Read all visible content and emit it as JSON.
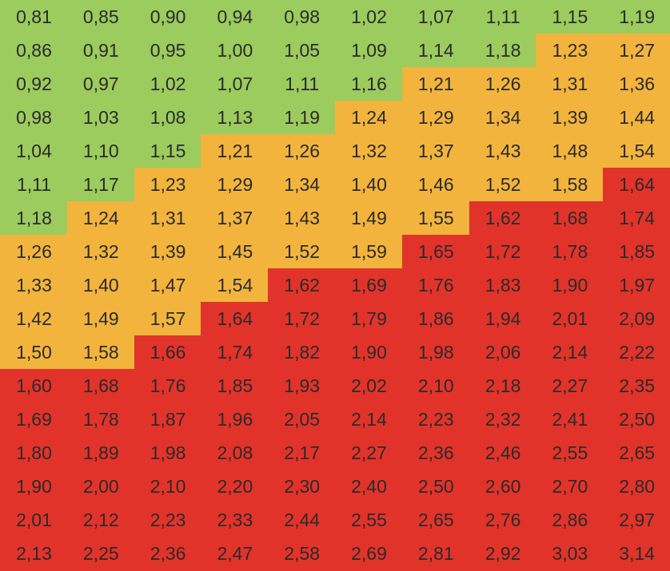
{
  "chart_data": {
    "type": "heatmap",
    "rows": [
      [
        "0,81",
        "0,85",
        "0,90",
        "0,94",
        "0,98",
        "1,02",
        "1,07",
        "1,11",
        "1,15",
        "1,19"
      ],
      [
        "0,86",
        "0,91",
        "0,95",
        "1,00",
        "1,05",
        "1,09",
        "1,14",
        "1,18",
        "1,23",
        "1,27"
      ],
      [
        "0,92",
        "0,97",
        "1,02",
        "1,07",
        "1,11",
        "1,16",
        "1,21",
        "1,26",
        "1,31",
        "1,36"
      ],
      [
        "0,98",
        "1,03",
        "1,08",
        "1,13",
        "1,19",
        "1,24",
        "1,29",
        "1,34",
        "1,39",
        "1,44"
      ],
      [
        "1,04",
        "1,10",
        "1,15",
        "1,21",
        "1,26",
        "1,32",
        "1,37",
        "1,43",
        "1,48",
        "1,54"
      ],
      [
        "1,11",
        "1,17",
        "1,23",
        "1,29",
        "1,34",
        "1,40",
        "1,46",
        "1,52",
        "1,58",
        "1,64"
      ],
      [
        "1,18",
        "1,24",
        "1,31",
        "1,37",
        "1,43",
        "1,49",
        "1,55",
        "1,62",
        "1,68",
        "1,74"
      ],
      [
        "1,26",
        "1,32",
        "1,39",
        "1,45",
        "1,52",
        "1,59",
        "1,65",
        "1,72",
        "1,78",
        "1,85"
      ],
      [
        "1,33",
        "1,40",
        "1,47",
        "1,54",
        "1,62",
        "1,69",
        "1,76",
        "1,83",
        "1,90",
        "1,97"
      ],
      [
        "1,42",
        "1,49",
        "1,57",
        "1,64",
        "1,72",
        "1,79",
        "1,86",
        "1,94",
        "2,01",
        "2,09"
      ],
      [
        "1,50",
        "1,58",
        "1,66",
        "1,74",
        "1,82",
        "1,90",
        "1,98",
        "2,06",
        "2,14",
        "2,22"
      ],
      [
        "1,60",
        "1,68",
        "1,76",
        "1,85",
        "1,93",
        "2,02",
        "2,10",
        "2,18",
        "2,27",
        "2,35"
      ],
      [
        "1,69",
        "1,78",
        "1,87",
        "1,96",
        "2,05",
        "2,14",
        "2,23",
        "2,32",
        "2,41",
        "2,50"
      ],
      [
        "1,80",
        "1,89",
        "1,98",
        "2,08",
        "2,17",
        "2,27",
        "2,36",
        "2,46",
        "2,55",
        "2,65"
      ],
      [
        "1,90",
        "2,00",
        "2,10",
        "2,20",
        "2,30",
        "2,40",
        "2,50",
        "2,60",
        "2,70",
        "2,80"
      ],
      [
        "2,01",
        "2,12",
        "2,23",
        "2,33",
        "2,44",
        "2,55",
        "2,65",
        "2,76",
        "2,86",
        "2,97"
      ],
      [
        "2,13",
        "2,25",
        "2,36",
        "2,47",
        "2,58",
        "2,69",
        "2,81",
        "2,92",
        "3,03",
        "3,14"
      ]
    ],
    "color_bands": [
      {
        "name": "green",
        "color": "#9CCB5E",
        "max": 1.2
      },
      {
        "name": "yellow",
        "color": "#F2B43D",
        "max": 1.6
      },
      {
        "name": "red",
        "color": "#E2332A",
        "max": 99
      }
    ],
    "grid": false
  }
}
